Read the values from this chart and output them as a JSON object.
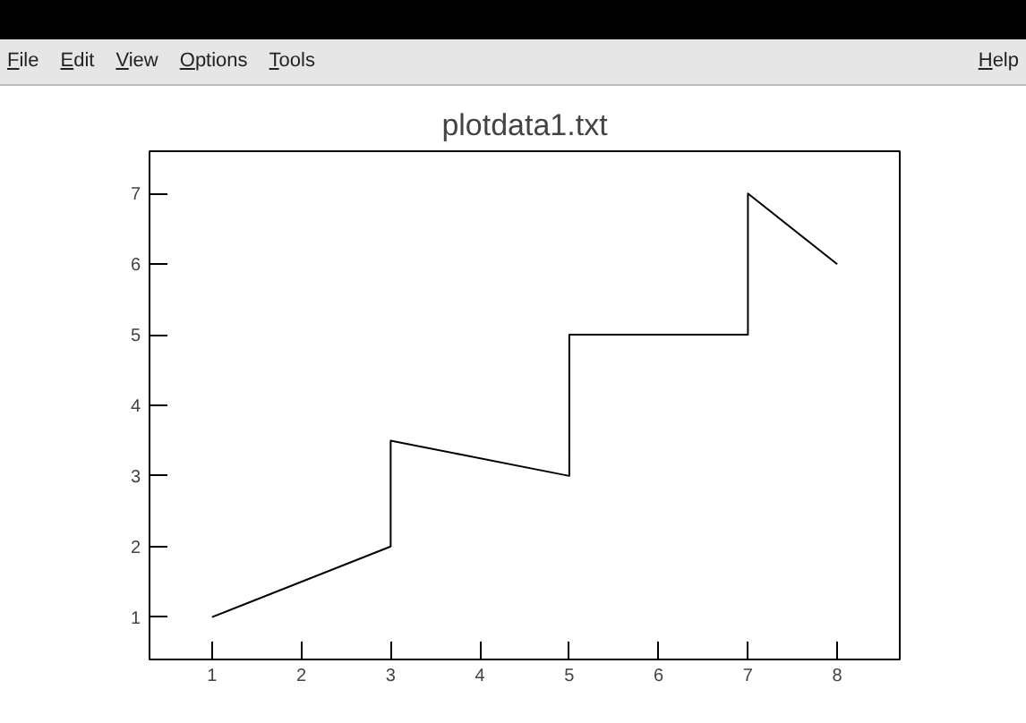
{
  "chart_data": {
    "type": "line",
    "title": "plotdata1.txt",
    "x": [
      1,
      3,
      3,
      5,
      5,
      7,
      7,
      8
    ],
    "series": [
      {
        "color": "#000000",
        "values": [
          1,
          2,
          3.5,
          3,
          5,
          5,
          7,
          6
        ]
      }
    ],
    "xlim": [
      0.3,
      8.7
    ],
    "ylim": [
      0.4,
      7.6
    ],
    "xticks": [
      1,
      2,
      3,
      4,
      5,
      6,
      7,
      8
    ],
    "yticks": [
      1,
      2,
      3,
      4,
      5,
      6,
      7
    ],
    "grid": false,
    "marker": "none",
    "line_style": "solid",
    "annotations": [
      "File",
      "Edit",
      "View",
      "Options",
      "Tools",
      "Help"
    ]
  }
}
